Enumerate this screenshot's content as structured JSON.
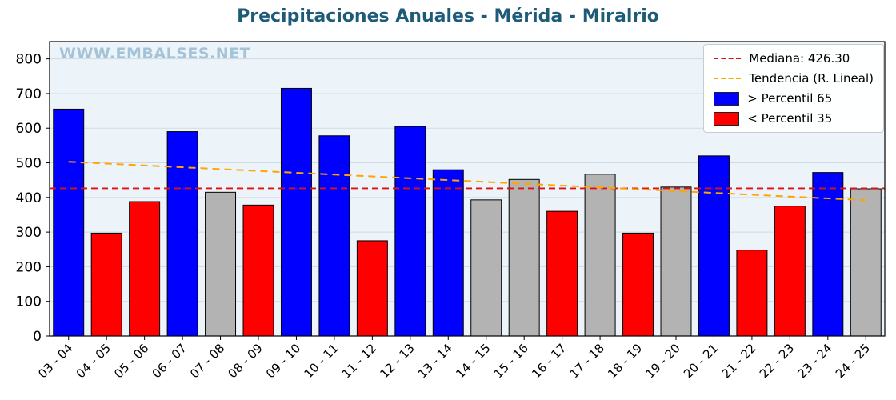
{
  "watermark": "WWW.EMBALSES.NET",
  "colors": {
    "title": "#1d5b79",
    "plot_bg": "#ecf4f9",
    "grid": "#cfdbe2",
    "blue": "#0000ff",
    "red": "#ff0000",
    "gray": "#b3b3b3",
    "median_line": "#e01010",
    "trend_line": "#ffa500",
    "bar_edge": "#000000"
  },
  "chart_data": {
    "type": "bar",
    "title": "Precipitaciones Anuales - Mérida - Miralrio",
    "categories": [
      "03 - 04",
      "04 - 05",
      "05 - 06",
      "06 - 07",
      "07 - 08",
      "08 - 09",
      "09 - 10",
      "10 - 11",
      "11 - 12",
      "12 - 13",
      "13 - 14",
      "14 - 15",
      "15 - 16",
      "16 - 17",
      "17 - 18",
      "18 - 19",
      "19 - 20",
      "20 - 21",
      "21 - 22",
      "22 - 23",
      "23 - 24",
      "24 - 25"
    ],
    "values": [
      655,
      297,
      388,
      590,
      415,
      378,
      715,
      578,
      275,
      605,
      480,
      393,
      452,
      360,
      467,
      297,
      430,
      520,
      248,
      375,
      472,
      425
    ],
    "bar_colors": [
      "blue",
      "red",
      "red",
      "blue",
      "gray",
      "red",
      "blue",
      "blue",
      "red",
      "blue",
      "blue",
      "gray",
      "gray",
      "red",
      "gray",
      "red",
      "gray",
      "blue",
      "red",
      "red",
      "blue",
      "gray"
    ],
    "median": 426.3,
    "trend": {
      "start": 503,
      "end": 392
    },
    "ylim": [
      0,
      850
    ],
    "yticks": [
      0,
      100,
      200,
      300,
      400,
      500,
      600,
      700,
      800
    ],
    "grid": true,
    "legend_position": "top-right",
    "legend": [
      {
        "label": "Mediana: 426.30",
        "type": "line",
        "color_key": "median_line"
      },
      {
        "label": "Tendencia (R. Lineal)",
        "type": "line",
        "color_key": "trend_line"
      },
      {
        "label": "> Percentil 65",
        "type": "patch",
        "color_key": "blue"
      },
      {
        "label": "< Percentil 35",
        "type": "patch",
        "color_key": "red"
      }
    ]
  }
}
